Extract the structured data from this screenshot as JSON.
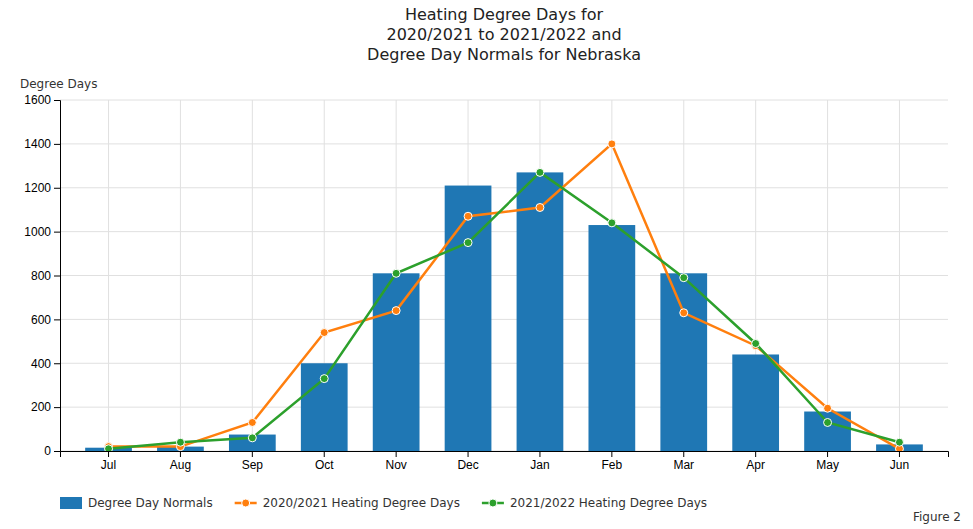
{
  "chart_data": {
    "type": "bar",
    "title": "Heating Degree Days for\n2020/2021 to 2021/2022 and\nDegree Day Normals for Nebraska",
    "y_label": "Degree Days",
    "categories": [
      "Jul",
      "Aug",
      "Sep",
      "Oct",
      "Nov",
      "Dec",
      "Jan",
      "Feb",
      "Mar",
      "Apr",
      "May",
      "Jun"
    ],
    "series": [
      {
        "name": "Degree Day Normals",
        "type": "bar",
        "values": [
          15,
          20,
          75,
          400,
          810,
          1210,
          1270,
          1030,
          810,
          440,
          180,
          30
        ]
      },
      {
        "name": "2020/2021 Heating Degree Days",
        "type": "line",
        "marker": "circle",
        "values": [
          20,
          20,
          130,
          540,
          640,
          1070,
          1110,
          1400,
          630,
          480,
          195,
          10
        ]
      },
      {
        "name": "2021/2022 Heating Degree Days",
        "type": "line",
        "marker": "circle",
        "values": [
          10,
          40,
          60,
          330,
          810,
          950,
          1270,
          1040,
          790,
          490,
          130,
          40
        ]
      }
    ],
    "ylim": [
      0,
      1600
    ],
    "yticks": [
      0,
      200,
      400,
      600,
      800,
      1000,
      1200,
      1400,
      1600
    ],
    "grid": true,
    "legend": "bottom",
    "annotations": [
      "Figure 2"
    ]
  }
}
